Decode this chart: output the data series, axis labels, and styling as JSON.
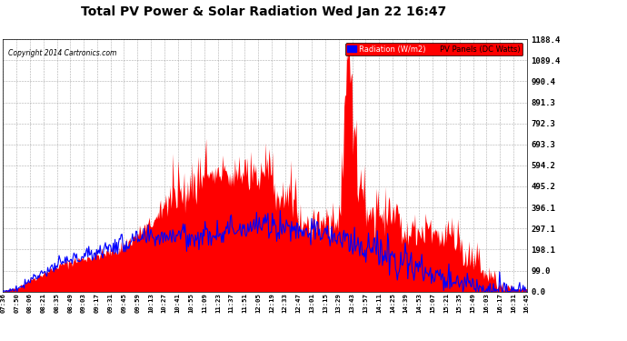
{
  "title": "Total PV Power & Solar Radiation Wed Jan 22 16:47",
  "copyright": "Copyright 2014 Cartronics.com",
  "bg_color": "#ffffff",
  "plot_bg_color": "#ffffff",
  "grid_color": "#999999",
  "pv_color": "#ff0000",
  "radiation_color": "#0000ff",
  "ylim": [
    0.0,
    1188.4
  ],
  "yticks": [
    0.0,
    99.0,
    198.1,
    297.1,
    396.1,
    495.2,
    594.2,
    693.3,
    792.3,
    891.3,
    990.4,
    1089.4,
    1188.4
  ],
  "ytick_labels": [
    "0.0",
    "99.0",
    "198.1",
    "297.1",
    "396.1",
    "495.2",
    "594.2",
    "693.3",
    "792.3",
    "891.3",
    "990.4",
    "1089.4",
    "1188.4"
  ],
  "legend_radiation_label": "Radiation (W/m2)",
  "legend_pv_label": "PV Panels (DC Watts)",
  "xtick_labels": [
    "07:36",
    "07:50",
    "08:06",
    "08:21",
    "08:35",
    "08:49",
    "09:03",
    "09:17",
    "09:31",
    "09:45",
    "09:59",
    "10:13",
    "10:27",
    "10:41",
    "10:55",
    "11:09",
    "11:23",
    "11:37",
    "11:51",
    "12:05",
    "12:19",
    "12:33",
    "12:47",
    "13:01",
    "13:15",
    "13:29",
    "13:43",
    "13:57",
    "14:11",
    "14:25",
    "14:39",
    "14:53",
    "15:07",
    "15:21",
    "15:35",
    "15:49",
    "16:03",
    "16:17",
    "16:31",
    "16:45"
  ]
}
